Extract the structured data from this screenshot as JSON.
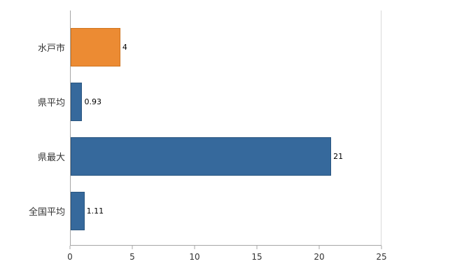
{
  "chart_data": {
    "type": "bar",
    "orientation": "horizontal",
    "title": "",
    "xlabel": "",
    "ylabel": "",
    "categories": [
      "水戸市",
      "県平均",
      "県最大",
      "全国平均"
    ],
    "values": [
      4,
      0.93,
      21,
      1.11
    ],
    "value_labels": [
      "4",
      "0.93",
      "21",
      "1.11"
    ],
    "bar_colors": [
      "#ec8b33",
      "#36699c",
      "#36699c",
      "#36699c"
    ],
    "bar_border_colors": [
      "#cf741f",
      "#2a5680",
      "#2a5680",
      "#2a5680"
    ],
    "xlim": [
      0,
      25
    ],
    "xticks": [
      0,
      5,
      10,
      15,
      20,
      25
    ],
    "grid": false,
    "legend_position": "none",
    "axis_color": "#a6a6a6",
    "background_color": "#ffffff"
  }
}
